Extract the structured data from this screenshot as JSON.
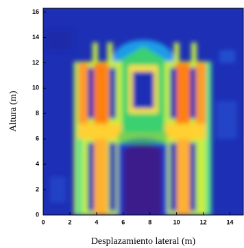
{
  "chart_data": {
    "type": "heatmap",
    "x_label": "Desplazamiento lateral (m)",
    "y_label": "Altura (m)",
    "xlim": [
      0,
      15
    ],
    "xticks": [
      0,
      2,
      4,
      6,
      8,
      10,
      12,
      14
    ],
    "ylim": [
      0,
      16.3
    ],
    "yticks": [
      0,
      2,
      4,
      6,
      8,
      10,
      12,
      14,
      16
    ]
  }
}
